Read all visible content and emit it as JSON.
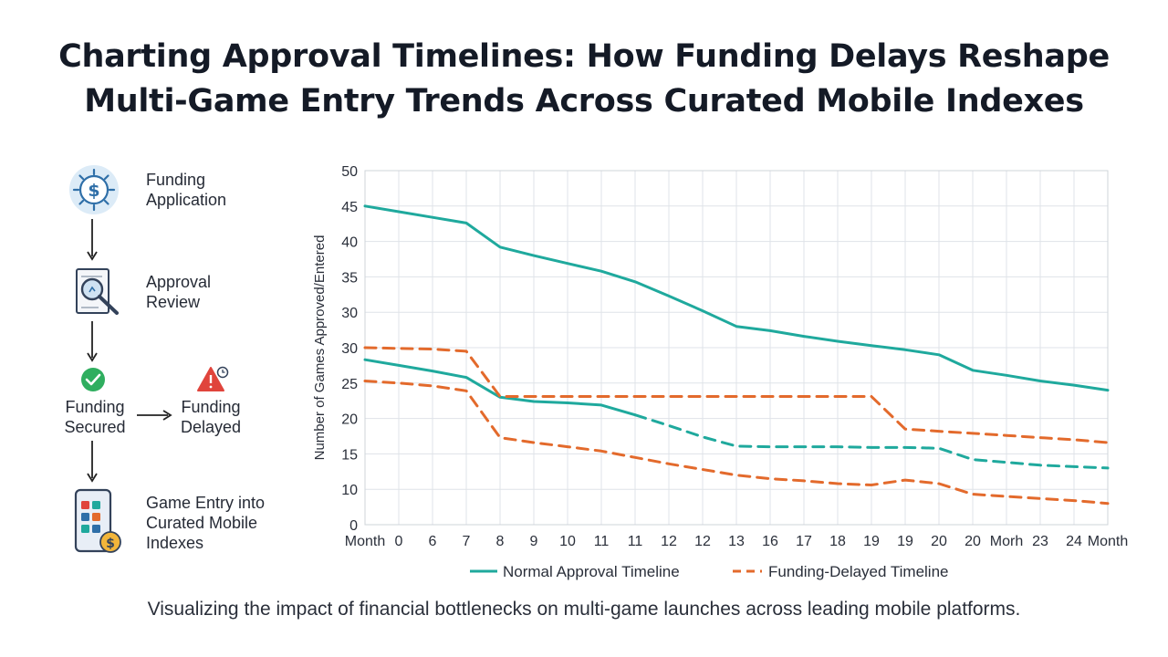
{
  "title_line1": "Charting Approval Timelines: How Funding Delays Reshape",
  "title_line2": "Multi-Game Entry Trends Across Curated Mobile Indexes",
  "caption": "Visualizing the impact of financial bottlenecks on multi-game launches across leading mobile platforms.",
  "flow": {
    "step1": [
      "Funding",
      "Application"
    ],
    "step2": [
      "Approval",
      "Review"
    ],
    "step3a": [
      "Funding",
      "Secured"
    ],
    "step3b": [
      "Funding",
      "Delayed"
    ],
    "step4": [
      "Game Entry into",
      "Curated Mobile",
      "Indexes"
    ],
    "icons": [
      "dollar-gear-icon",
      "magnifier-document-icon",
      "checkmark-icon",
      "warning-clock-icon",
      "phone-apps-coin-icon"
    ],
    "colors": {
      "icon_blue": "#2f6fa8",
      "check_green": "#2fae5f",
      "warning_red": "#e0443c",
      "coin_gold": "#f2b53a"
    }
  },
  "chart_data": {
    "type": "line",
    "xlabel": "",
    "ylabel": "Number of Games Approved/Entered",
    "x_tick_labels": [
      "Month",
      "0",
      "6",
      "7",
      "8",
      "9",
      "10",
      "11",
      "11",
      "12",
      "12",
      "13",
      "16",
      "17",
      "18",
      "19",
      "19",
      "20",
      "20",
      "Morh",
      "23",
      "24",
      "Month"
    ],
    "y_tick_labels": [
      "0",
      "10",
      "15",
      "20",
      "25",
      "30",
      "30",
      "35",
      "40",
      "45",
      "50"
    ],
    "grid": true,
    "legend_position": "bottom",
    "colors": {
      "normal": "#1fa99d",
      "delayed": "#e36a2c"
    },
    "series": [
      {
        "name": "Normal Approval Timeline",
        "color": "#1fa99d",
        "style": "solid",
        "segments": [
          {
            "style": "solid",
            "points": [
              [
                0,
                45
              ],
              [
                1,
                44.2
              ],
              [
                2,
                43.4
              ],
              [
                3,
                42.6
              ],
              [
                4,
                39.2
              ],
              [
                5,
                38
              ],
              [
                6,
                36.9
              ],
              [
                7,
                35.8
              ],
              [
                8,
                34.3
              ],
              [
                9,
                32.3
              ],
              [
                10,
                30.2
              ],
              [
                11,
                28
              ],
              [
                12,
                27.4
              ],
              [
                13,
                26.6
              ],
              [
                14,
                25.9
              ],
              [
                15,
                25.3
              ],
              [
                16,
                24.7
              ],
              [
                17,
                24
              ],
              [
                18,
                21.8
              ],
              [
                19,
                21.1
              ],
              [
                20,
                20.3
              ],
              [
                21,
                19.7
              ],
              [
                22,
                19
              ]
            ]
          }
        ]
      },
      {
        "name": "Normal Approval Timeline",
        "color": "#1fa99d",
        "style": "solid",
        "segments": [
          {
            "style": "solid",
            "points": [
              [
                0,
                23.3
              ],
              [
                1,
                22.5
              ],
              [
                2,
                21.7
              ],
              [
                3,
                20.8
              ],
              [
                4,
                18
              ],
              [
                5,
                17.4
              ],
              [
                6,
                17.2
              ],
              [
                7,
                16.9
              ],
              [
                8,
                15.5
              ]
            ]
          },
          {
            "style": "dashed",
            "points": [
              [
                8,
                15.5
              ],
              [
                9,
                14
              ],
              [
                10,
                12.4
              ],
              [
                11,
                11.1
              ],
              [
                12,
                11
              ],
              [
                13,
                11
              ],
              [
                14,
                11
              ],
              [
                15,
                10.9
              ],
              [
                16,
                10.9
              ],
              [
                17,
                10.8
              ],
              [
                18,
                9.2
              ],
              [
                19,
                8.8
              ],
              [
                20,
                8.4
              ],
              [
                21,
                8.2
              ],
              [
                22,
                8
              ]
            ]
          }
        ]
      },
      {
        "name": "Funding-Delayed Timeline",
        "color": "#e36a2c",
        "style": "dashed",
        "segments": [
          {
            "style": "dashed",
            "points": [
              [
                0,
                25
              ],
              [
                1,
                24.9
              ],
              [
                2,
                24.8
              ],
              [
                3,
                24.5
              ],
              [
                4,
                18.1
              ],
              [
                5,
                18.1
              ],
              [
                6,
                18.1
              ],
              [
                7,
                18.1
              ],
              [
                8,
                18.1
              ],
              [
                9,
                18.1
              ],
              [
                10,
                18.1
              ],
              [
                11,
                18.1
              ],
              [
                12,
                18.1
              ],
              [
                13,
                18.1
              ],
              [
                14,
                18.1
              ],
              [
                15,
                18.1
              ],
              [
                16,
                13.5
              ],
              [
                17,
                13.2
              ],
              [
                18,
                12.9
              ],
              [
                19,
                12.6
              ],
              [
                20,
                12.3
              ],
              [
                21,
                12
              ],
              [
                22,
                11.6
              ]
            ]
          }
        ]
      },
      {
        "name": "Funding-Delayed Timeline",
        "color": "#e36a2c",
        "style": "dashed",
        "segments": [
          {
            "style": "dashed",
            "points": [
              [
                0,
                20.3
              ],
              [
                1,
                20
              ],
              [
                2,
                19.6
              ],
              [
                3,
                18.9
              ],
              [
                4,
                12.3
              ],
              [
                5,
                11.6
              ],
              [
                6,
                11
              ],
              [
                7,
                10.4
              ],
              [
                8,
                9.5
              ],
              [
                9,
                8.6
              ],
              [
                10,
                7.8
              ],
              [
                11,
                7
              ],
              [
                12,
                6.5
              ],
              [
                13,
                6.2
              ],
              [
                14,
                5.8
              ],
              [
                15,
                5.6
              ],
              [
                16,
                6.3
              ],
              [
                17,
                5.8
              ],
              [
                18,
                4.3
              ],
              [
                19,
                4
              ],
              [
                20,
                3.7
              ],
              [
                21,
                3.4
              ],
              [
                22,
                3
              ]
            ]
          }
        ]
      }
    ],
    "legend": [
      "Normal Approval Timeline",
      "Funding-Delayed Timeline"
    ]
  }
}
